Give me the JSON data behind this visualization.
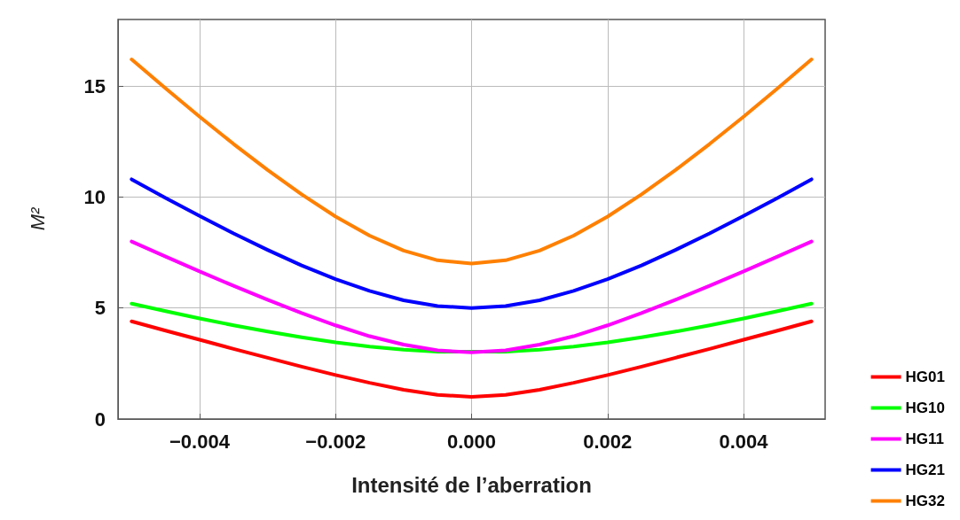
{
  "chart_data": {
    "type": "line",
    "xlabel": "Intensité de l’aberration",
    "ylabel": "M²",
    "x": [
      -0.005,
      -0.0045,
      -0.004,
      -0.0035,
      -0.003,
      -0.0025,
      -0.002,
      -0.0015,
      -0.001,
      -0.0005,
      0,
      0.0005,
      0.001,
      0.0015,
      0.002,
      0.0025,
      0.003,
      0.0035,
      0.004,
      0.0045,
      0.005
    ],
    "series": [
      {
        "name": "HG01",
        "color": "#ff0000",
        "values": [
          4.4,
          3.98,
          3.57,
          3.16,
          2.76,
          2.36,
          1.98,
          1.63,
          1.32,
          1.09,
          1.0,
          1.09,
          1.32,
          1.63,
          1.98,
          2.36,
          2.76,
          3.16,
          3.57,
          3.98,
          4.4
        ]
      },
      {
        "name": "HG10",
        "color": "#00ff00",
        "values": [
          5.2,
          4.86,
          4.53,
          4.22,
          3.94,
          3.68,
          3.45,
          3.26,
          3.12,
          3.03,
          null,
          3.03,
          3.12,
          3.26,
          3.45,
          3.68,
          3.94,
          4.22,
          4.53,
          4.86,
          5.2
        ]
      },
      {
        "name": "HG11",
        "color": "#ff00ff",
        "values": [
          8.0,
          7.32,
          6.65,
          6.0,
          5.37,
          4.77,
          4.22,
          3.73,
          3.35,
          3.09,
          3.0,
          3.09,
          3.35,
          3.73,
          4.22,
          4.77,
          5.37,
          6.0,
          6.65,
          7.32,
          8.0
        ]
      },
      {
        "name": "HG21",
        "color": "#0000ff",
        "values": [
          10.8,
          9.96,
          9.15,
          8.36,
          7.62,
          6.92,
          6.3,
          5.77,
          5.35,
          5.09,
          5.0,
          5.09,
          5.35,
          5.77,
          6.3,
          6.92,
          7.62,
          8.36,
          9.15,
          9.96,
          10.8
        ]
      },
      {
        "name": "HG32",
        "color": "#ff8000",
        "values": [
          16.2,
          14.9,
          13.62,
          12.39,
          11.22,
          10.12,
          9.12,
          8.26,
          7.59,
          7.15,
          7.0,
          7.15,
          7.59,
          8.26,
          9.12,
          10.12,
          11.22,
          12.39,
          13.62,
          14.9,
          16.2
        ]
      }
    ],
    "xlim": [
      -0.0052,
      0.0052
    ],
    "xticks": [
      {
        "value": -0.004,
        "label": "−0.004"
      },
      {
        "value": -0.002,
        "label": "−0.002"
      },
      {
        "value": 0,
        "label": "0.000"
      },
      {
        "value": 0.002,
        "label": "0.002"
      },
      {
        "value": 0.004,
        "label": "0.004"
      }
    ],
    "ylim": [
      0,
      18
    ],
    "yticks": [
      0,
      5,
      10,
      15
    ],
    "grid": true,
    "legend": "bottom right",
    "marker": "none",
    "line_style": "solid"
  }
}
